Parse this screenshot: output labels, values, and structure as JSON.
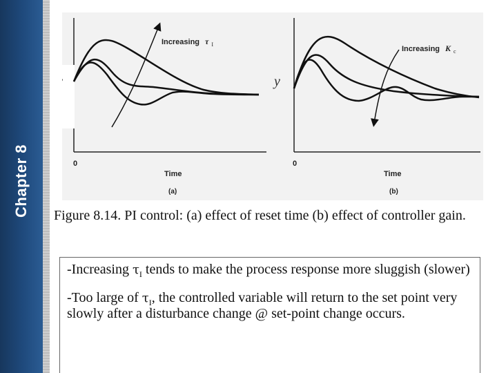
{
  "sidebar": {
    "chapter_label": "Chapter 8"
  },
  "figure": {
    "panel_a": {
      "y_label": "y",
      "x_label": "Time",
      "origin_tick": "0",
      "annotation_text": "Increasing",
      "annotation_symbol": "τ",
      "annotation_subscript": "I",
      "sub_label": "(a)"
    },
    "panel_b": {
      "y_label": "y",
      "x_label": "Time",
      "origin_tick": "0",
      "annotation_text": "Increasing",
      "annotation_symbol": "K",
      "annotation_subscript": "c",
      "sub_label": "(b)"
    },
    "curve_color": "#111111"
  },
  "caption": "Figure 8.14. PI control: (a) effect of reset time  (b) effect of controller gain.",
  "notes": {
    "note1": {
      "prefix": "-Increasing ",
      "symbol": "τ",
      "subscript": "I",
      "suffix": " tends to make the process response more sluggish (slower)"
    },
    "note2": {
      "prefix": "-Too large of ",
      "symbol": "τ",
      "subscript": "I",
      "suffix": ", the controlled variable will return to the set point very slowly after a disturbance change @ set-point change occurs."
    }
  }
}
